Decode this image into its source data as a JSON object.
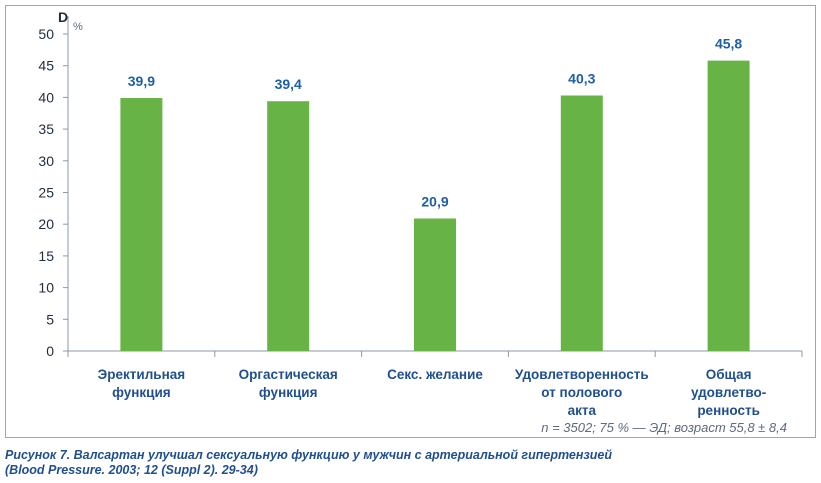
{
  "chart_data": {
    "type": "bar",
    "ylabel": "D",
    "yunit": "%",
    "ylim": [
      0,
      50
    ],
    "yticks": [
      0,
      5,
      10,
      15,
      20,
      25,
      30,
      35,
      40,
      45,
      50
    ],
    "categories": [
      [
        "Эректильная",
        "функция"
      ],
      [
        "Оргастическая",
        "функция"
      ],
      [
        "Секс. желание"
      ],
      [
        "Удовлетворенность",
        "от полового",
        "акта"
      ],
      [
        "Общая",
        "удовлетво-",
        "ренность"
      ]
    ],
    "values": [
      39.9,
      39.4,
      20.9,
      40.3,
      45.8
    ],
    "value_labels": [
      "39,9",
      "39,4",
      "20,9",
      "40,3",
      "45,8"
    ],
    "bar_color": "#67b346",
    "grid": false
  },
  "note": "n = 3502; 75 % — ЭД; возраст 55,8 ± 8,4",
  "caption": {
    "line1": "Рисунок 7. Валсартан улучшал сексуальную функцию у мужчин с артериальной гипертензией",
    "line2": "(Blood Pressure. 2003; 12 (Suppl 2). 29-34)"
  }
}
